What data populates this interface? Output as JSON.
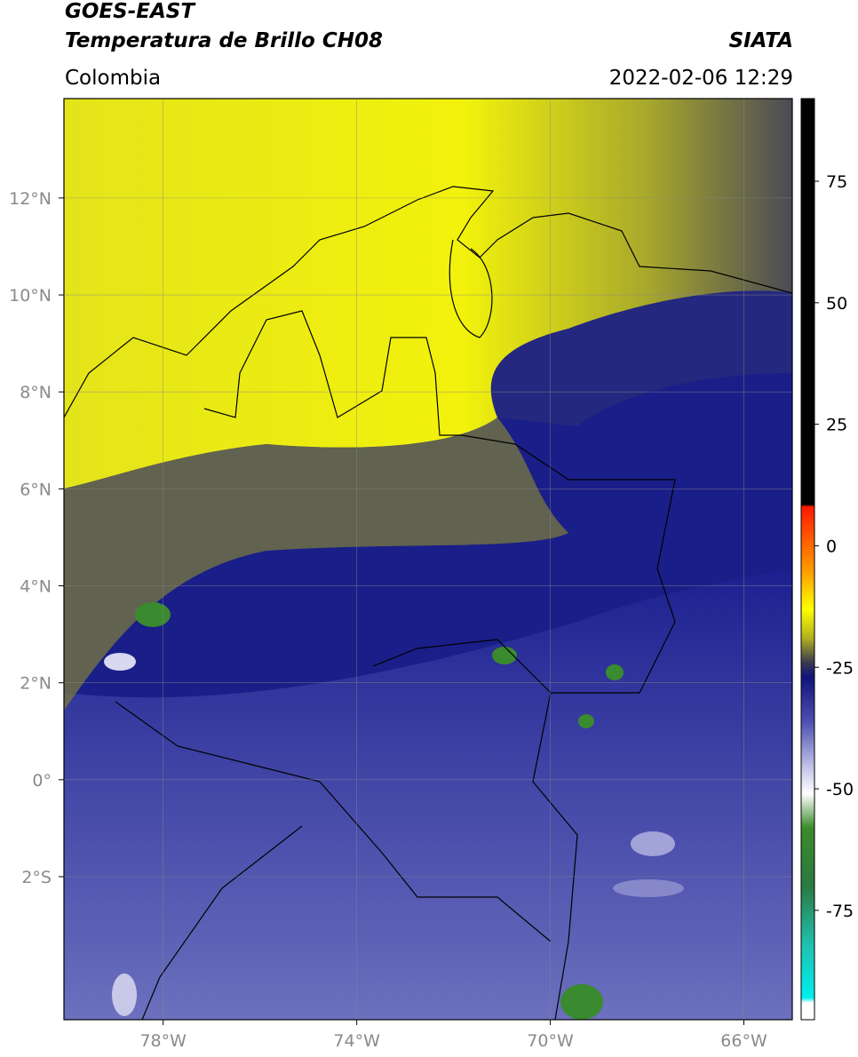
{
  "header": {
    "satellite": "GOES-EAST",
    "product": "Temperatura de Brillo CH08",
    "region": "Colombia",
    "source": "SIATA",
    "datetime": "2022-02-06 12:29"
  },
  "map": {
    "xlim": [
      -80.05,
      -65
    ],
    "ylim": [
      -4.95,
      14.05
    ],
    "xticks": [
      {
        "value": -78,
        "label": "78°W"
      },
      {
        "value": -74,
        "label": "74°W"
      },
      {
        "value": -70,
        "label": "70°W"
      },
      {
        "value": -66,
        "label": "66°W"
      }
    ],
    "yticks": [
      {
        "value": 12,
        "label": "12°N"
      },
      {
        "value": 10,
        "label": "10°N"
      },
      {
        "value": 8,
        "label": "8°N"
      },
      {
        "value": 6,
        "label": "6°N"
      },
      {
        "value": 4,
        "label": "4°N"
      },
      {
        "value": 2,
        "label": "2°N"
      },
      {
        "value": 0,
        "label": "0°"
      },
      {
        "value": -2,
        "label": "2°S"
      }
    ],
    "grid": true
  },
  "colorbar": {
    "lim": [
      -97.5,
      92
    ],
    "ticks": [
      75,
      50,
      25,
      0,
      -25,
      -50,
      -75
    ],
    "stops": [
      {
        "value": 92,
        "color": "#000000"
      },
      {
        "value": 8.5,
        "color": "#000000"
      },
      {
        "value": 8,
        "color": "#ff1a00"
      },
      {
        "value": -5,
        "color": "#ff9900"
      },
      {
        "value": -13,
        "color": "#ffff00"
      },
      {
        "value": -19,
        "color": "#b0b020"
      },
      {
        "value": -24,
        "color": "#3a3a50"
      },
      {
        "value": -27,
        "color": "#10147a"
      },
      {
        "value": -36,
        "color": "#4a4eae"
      },
      {
        "value": -46,
        "color": "#c8c8ec"
      },
      {
        "value": -51,
        "color": "#ffffff"
      },
      {
        "value": -58,
        "color": "#3c8a2c"
      },
      {
        "value": -70,
        "color": "#2a7a40"
      },
      {
        "value": -82,
        "color": "#20c0b0"
      },
      {
        "value": -93,
        "color": "#00f0f0"
      },
      {
        "value": -94,
        "color": "#ffffff"
      },
      {
        "value": -97.5,
        "color": "#ffffff"
      }
    ]
  }
}
